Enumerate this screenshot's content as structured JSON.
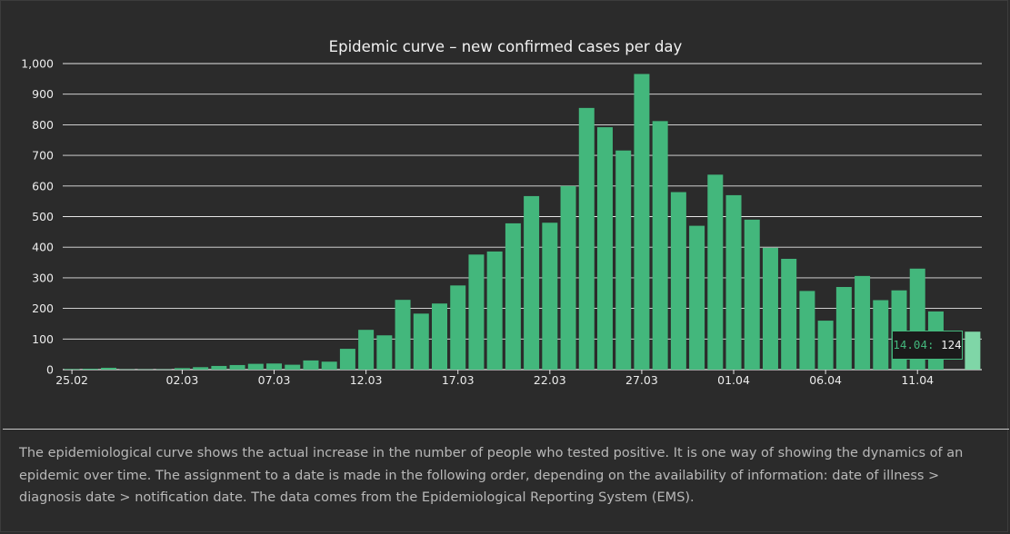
{
  "colors": {
    "background": "#2b2b2b",
    "bar": "#43b77c",
    "bar_highlight": "#7fd6a7",
    "grid": "#e6e6e6",
    "text": "#ececec",
    "description_text": "#b8b8b8"
  },
  "chart_data": {
    "type": "bar",
    "title": "Epidemic curve – new confirmed cases per day",
    "xlabel": "",
    "ylabel": "",
    "ylim": [
      0,
      1000
    ],
    "y_ticks": [
      "0",
      "100",
      "200",
      "300",
      "400",
      "500",
      "600",
      "700",
      "800",
      "900",
      "1,000"
    ],
    "x_ticks": [
      "25.02",
      "02.03",
      "07.03",
      "12.03",
      "17.03",
      "22.03",
      "27.03",
      "01.04",
      "06.04",
      "11.04"
    ],
    "grid": true,
    "legend": "none",
    "categories": [
      "25.02",
      "26.02",
      "27.02",
      "28.02",
      "29.02",
      "01.03",
      "02.03",
      "03.03",
      "04.03",
      "05.03",
      "06.03",
      "07.03",
      "08.03",
      "09.03",
      "10.03",
      "11.03",
      "12.03",
      "13.03",
      "14.03",
      "15.03",
      "16.03",
      "17.03",
      "18.03",
      "19.03",
      "20.03",
      "21.03",
      "22.03",
      "23.03",
      "24.03",
      "25.03",
      "26.03",
      "27.03",
      "28.03",
      "29.03",
      "30.03",
      "31.03",
      "01.04",
      "02.04",
      "03.04",
      "04.04",
      "05.04",
      "06.04",
      "07.04",
      "08.04",
      "09.04",
      "10.04",
      "11.04",
      "12.04",
      "13.04",
      "14.04"
    ],
    "values": [
      2,
      3,
      6,
      1,
      1,
      1,
      5,
      8,
      12,
      15,
      19,
      20,
      16,
      30,
      26,
      68,
      130,
      112,
      228,
      183,
      216,
      275,
      376,
      386,
      478,
      567,
      480,
      600,
      855,
      792,
      716,
      966,
      812,
      580,
      470,
      637,
      570,
      490,
      398,
      362,
      257,
      160,
      270,
      306,
      227,
      259,
      330,
      190,
      0,
      124
    ],
    "highlight_category": "14.04"
  },
  "tooltip": {
    "date_label": "14.04:",
    "value_label": "124"
  },
  "description": "The epidemiological curve shows the actual increase in the number of people who tested positive. It is one way of showing the dynamics of an epidemic over time. The assignment to a date is made in the following order, depending on the availability of information: date of illness > diagnosis date > notification date. The data comes from the Epidemiological Reporting System (EMS)."
}
